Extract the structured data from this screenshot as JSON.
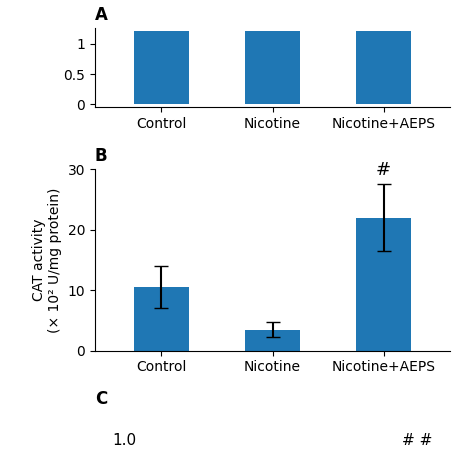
{
  "chart_data": [
    {
      "type": "bar",
      "title": "A",
      "categories": [
        "Control",
        "Nicotine",
        "Nicotine+AEPS"
      ],
      "values": [
        1.2,
        1.2,
        1.2
      ],
      "ylim": [
        -0.05,
        1.25
      ],
      "yticks": [
        0,
        0.5,
        1
      ]
    },
    {
      "type": "bar",
      "title": "B",
      "categories": [
        "Control",
        "Nicotine",
        "Nicotine+AEPS"
      ],
      "values": [
        10.5,
        3.5,
        22.0
      ],
      "errors": [
        3.5,
        1.2,
        5.5
      ],
      "ylabel": "CAT activity\n(× 10² U/mg protein)",
      "ylim": [
        0,
        30
      ],
      "yticks": [
        0,
        10,
        20,
        30
      ],
      "annotations": [
        {
          "text": "#",
          "category": "Nicotine+AEPS"
        }
      ]
    },
    {
      "type": "text",
      "title": "C",
      "annotations": [
        "1.0",
        "# #"
      ]
    }
  ]
}
